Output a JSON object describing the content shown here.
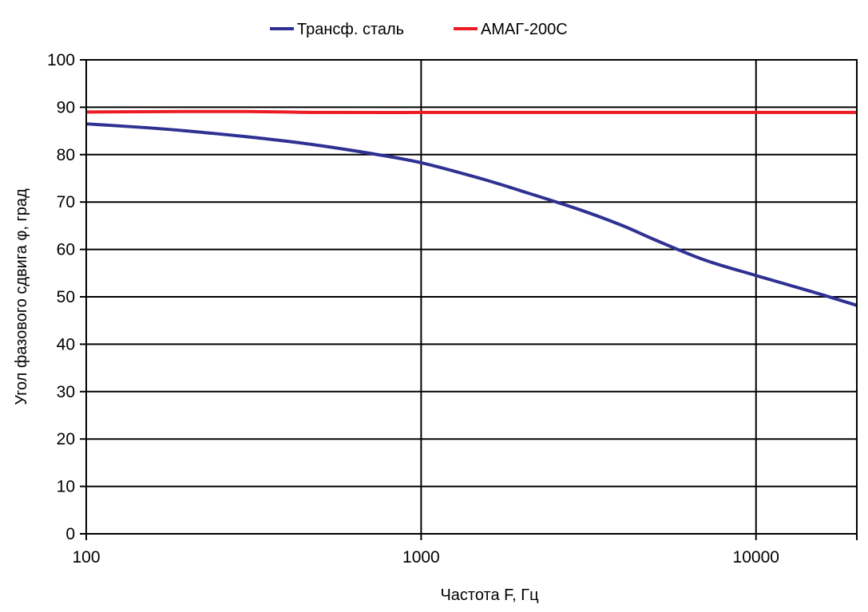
{
  "chart_data": {
    "type": "line",
    "title": "",
    "xlabel": "Частота F, Гц",
    "ylabel": "Угол фазового сдвига φ, град",
    "x_scale": "log",
    "xlim": [
      100,
      20000
    ],
    "ylim": [
      0,
      100
    ],
    "x_ticks": [
      100,
      1000,
      10000
    ],
    "x_tick_labels": [
      "100",
      "1000",
      "10000"
    ],
    "y_ticks": [
      0,
      10,
      20,
      30,
      40,
      50,
      60,
      70,
      80,
      90,
      100
    ],
    "y_tick_labels": [
      "0",
      "10",
      "20",
      "30",
      "40",
      "50",
      "60",
      "70",
      "80",
      "90",
      "100"
    ],
    "grid": true,
    "legend_position": "top-center",
    "series": [
      {
        "name": "Трансф. сталь",
        "color": "#2e3192",
        "x": [
          100,
          150,
          200,
          300,
          400,
          500,
          700,
          1000,
          1500,
          2000,
          3000,
          4000,
          5000,
          7000,
          10000,
          15000,
          20000
        ],
        "y": [
          86.5,
          85.7,
          85.0,
          83.8,
          82.8,
          81.9,
          80.3,
          78.3,
          75.0,
          72.3,
          68.3,
          65.0,
          62.0,
          57.8,
          54.5,
          50.9,
          48.2
        ]
      },
      {
        "name": "АМАГ-200С",
        "color": "#ed1c24",
        "x": [
          100,
          200,
          300,
          400,
          500,
          1000,
          2000,
          5000,
          10000,
          20000
        ],
        "y": [
          89.0,
          89.1,
          89.1,
          89.0,
          88.9,
          88.9,
          88.9,
          88.9,
          88.9,
          88.9
        ]
      }
    ]
  }
}
